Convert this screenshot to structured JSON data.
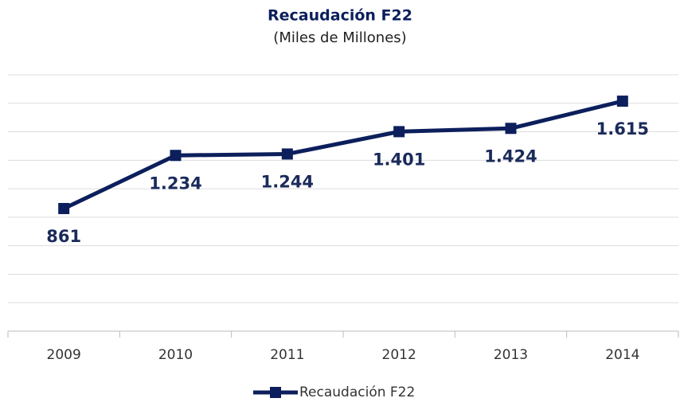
{
  "chart_data": {
    "type": "line",
    "title": "Recaudación F22",
    "subtitle": "(Miles de Millones)",
    "categories": [
      "2009",
      "2010",
      "2011",
      "2012",
      "2013",
      "2014"
    ],
    "series": [
      {
        "name": "Recaudación F22",
        "color": "#0c1f5c",
        "values": [
          861,
          1234,
          1244,
          1401,
          1424,
          1615
        ],
        "value_labels": [
          "861",
          "1.234",
          "1.244",
          "1.401",
          "1.424",
          "1.615"
        ]
      }
    ],
    "ylim": [
      0,
      1800
    ],
    "yticks": [
      0,
      200,
      400,
      600,
      800,
      1000,
      1200,
      1400,
      1600,
      1800
    ],
    "grid": true,
    "legend": "bottom"
  }
}
